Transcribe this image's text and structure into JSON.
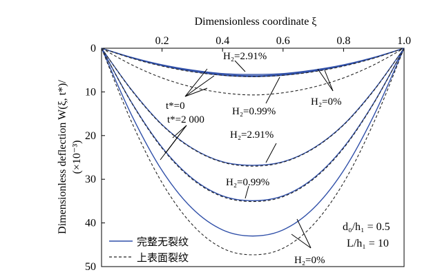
{
  "chart_data": {
    "type": "line",
    "xlabel": "Dimensionless coordinate ξ",
    "xlim": [
      0,
      1.0
    ],
    "ylim": [
      0,
      50
    ],
    "y_inverted": true,
    "x_axis_position": "top",
    "x_ticks": [
      0.2,
      0.4,
      0.6,
      0.8,
      1.0
    ],
    "x_tick_labels": [
      "0.2",
      "0.4",
      "0.6",
      "0.8",
      "1.0"
    ],
    "y_ticks": [
      0,
      10,
      20,
      30,
      40,
      50
    ],
    "y_tick_labels": [
      "0",
      "10",
      "20",
      "30",
      "40",
      "50"
    ],
    "ylabel_lines": [
      "Dimensionless deflection W(ξ, t*)/",
      "(×10⁻³)"
    ],
    "grid": false,
    "legend_position": "bottom-left",
    "legend": [
      {
        "label": "完整无裂纹",
        "style": "solid",
        "color": "#2f4fa8"
      },
      {
        "label": "上表面裂纹",
        "style": "dashed",
        "color": "#222222"
      }
    ],
    "parameters": [
      "d₀/h₁ = 0.5",
      "L/h₁ = 10"
    ],
    "series": [
      {
        "style": "solid",
        "time": "t*=0",
        "H2": "2.91%",
        "x": [
          0,
          0.1,
          0.2,
          0.3,
          0.4,
          0.5,
          0.6,
          0.7,
          0.8,
          0.9,
          1.0
        ],
        "y": [
          0,
          2.1,
          3.8,
          5.0,
          5.8,
          6.0,
          5.8,
          5.0,
          3.8,
          2.1,
          0
        ]
      },
      {
        "style": "solid",
        "time": "t*=0",
        "H2": "0.99%",
        "x": [
          0,
          0.1,
          0.2,
          0.3,
          0.4,
          0.5,
          0.6,
          0.7,
          0.8,
          0.9,
          1.0
        ],
        "y": [
          0,
          2.2,
          3.9,
          5.1,
          6.0,
          6.3,
          6.0,
          5.1,
          3.9,
          2.2,
          0
        ]
      },
      {
        "style": "solid",
        "time": "t*=0",
        "H2": "0%",
        "x": [
          0,
          0.1,
          0.2,
          0.3,
          0.4,
          0.5,
          0.6,
          0.7,
          0.8,
          0.9,
          1.0
        ],
        "y": [
          0,
          2.2,
          4.0,
          5.3,
          6.2,
          6.5,
          6.2,
          5.3,
          4.0,
          2.2,
          0
        ]
      },
      {
        "style": "dashed",
        "time": "t*=0",
        "H2": "0.99%",
        "x": [
          0,
          0.1,
          0.2,
          0.3,
          0.4,
          0.5,
          0.6,
          0.7,
          0.8,
          0.9,
          1.0
        ],
        "y": [
          0,
          2.3,
          4.1,
          5.4,
          6.2,
          6.5,
          6.2,
          5.4,
          4.1,
          2.3,
          0
        ]
      },
      {
        "style": "dashed",
        "time": "t*=0",
        "H2": "0%",
        "x": [
          0,
          0.1,
          0.2,
          0.3,
          0.4,
          0.5,
          0.6,
          0.7,
          0.8,
          0.9,
          1.0
        ],
        "y": [
          0,
          3.8,
          6.8,
          8.9,
          10.2,
          10.7,
          10.2,
          8.9,
          6.8,
          3.8,
          0
        ]
      },
      {
        "style": "solid",
        "time": "t*=2000",
        "H2": "2.91%",
        "x": [
          0,
          0.1,
          0.2,
          0.3,
          0.4,
          0.5,
          0.6,
          0.7,
          0.8,
          0.9,
          1.0
        ],
        "y": [
          0,
          9.6,
          17.5,
          22.9,
          26.0,
          26.8,
          26.0,
          22.9,
          17.5,
          9.6,
          0
        ]
      },
      {
        "style": "dashed",
        "time": "t*=2000",
        "H2": "2.91%",
        "x": [
          0,
          0.1,
          0.2,
          0.3,
          0.4,
          0.5,
          0.6,
          0.7,
          0.8,
          0.9,
          1.0
        ],
        "y": [
          0,
          9.7,
          17.6,
          23.0,
          26.1,
          27.0,
          26.1,
          23.0,
          17.6,
          9.7,
          0
        ]
      },
      {
        "style": "solid",
        "time": "t*=2000",
        "H2": "0.99%",
        "x": [
          0,
          0.1,
          0.2,
          0.3,
          0.4,
          0.5,
          0.6,
          0.7,
          0.8,
          0.9,
          1.0
        ],
        "y": [
          0,
          12.5,
          22.7,
          29.8,
          33.8,
          34.9,
          33.8,
          29.8,
          22.7,
          12.5,
          0
        ]
      },
      {
        "style": "dashed",
        "time": "t*=2000",
        "H2": "0.99%",
        "x": [
          0,
          0.1,
          0.2,
          0.3,
          0.4,
          0.5,
          0.6,
          0.7,
          0.8,
          0.9,
          1.0
        ],
        "y": [
          0,
          12.6,
          22.9,
          30.0,
          34.0,
          35.1,
          34.0,
          30.0,
          22.9,
          12.6,
          0
        ]
      },
      {
        "style": "solid",
        "time": "t*=2000",
        "H2": "0%",
        "x": [
          0,
          0.1,
          0.2,
          0.3,
          0.4,
          0.5,
          0.6,
          0.7,
          0.8,
          0.9,
          1.0
        ],
        "y": [
          0,
          15.4,
          28.0,
          36.7,
          41.6,
          43.0,
          41.6,
          36.7,
          28.0,
          15.4,
          0
        ]
      },
      {
        "style": "dashed",
        "time": "t*=2000",
        "H2": "0%",
        "x": [
          0,
          0.1,
          0.2,
          0.3,
          0.4,
          0.5,
          0.6,
          0.7,
          0.8,
          0.9,
          1.0
        ],
        "y": [
          0,
          17.0,
          30.8,
          40.4,
          45.8,
          47.3,
          45.8,
          40.4,
          30.8,
          17.0,
          0
        ]
      }
    ],
    "annotations": [
      "H₂=2.91%",
      "t*=0",
      "t*=2 000",
      "H₂=0.99%",
      "H₂=0%",
      "H₂=2.91%",
      "H₂=0.99%",
      "H₂=0%"
    ]
  },
  "colors": {
    "solid": "#2f4fa8",
    "dashed": "#222222",
    "axis": "#000000"
  }
}
